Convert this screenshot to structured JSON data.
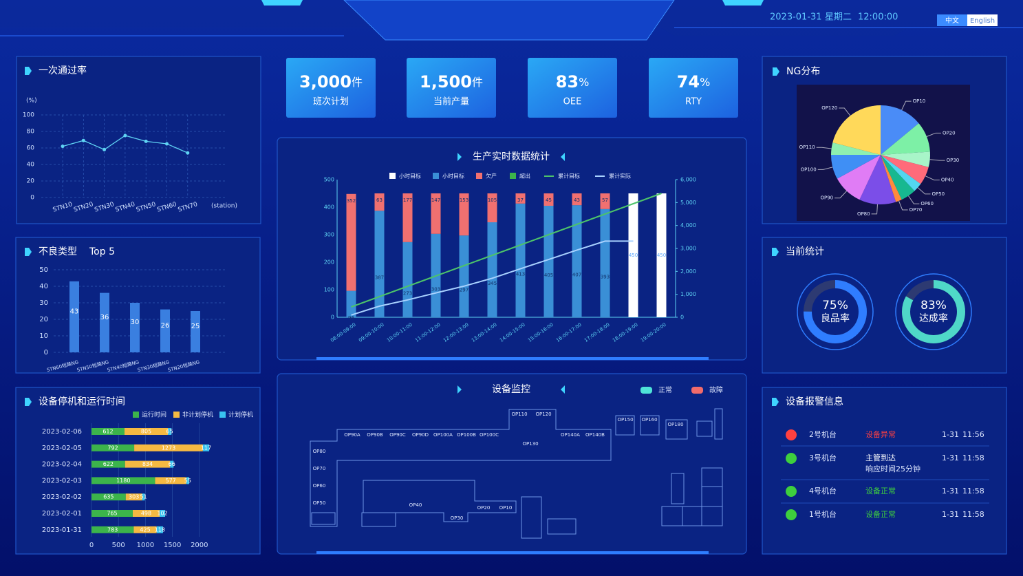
{
  "header": {
    "date": "2023-01-31",
    "weekday": "星期二",
    "time": "12:00:00",
    "languages": [
      "中文",
      "English"
    ]
  },
  "kpis": [
    {
      "value": "3,000",
      "unit": "件",
      "label": "班次计划"
    },
    {
      "value": "1,500",
      "unit": "件",
      "label": "当前产量"
    },
    {
      "value": "83",
      "unit": "%",
      "label": "OEE"
    },
    {
      "value": "74",
      "unit": "%",
      "label": "RTY"
    }
  ],
  "fpy": {
    "type": "line",
    "title": "一次通过率",
    "y_label": "(%)",
    "x_label": "(station)",
    "categories": [
      "STN10",
      "STN20",
      "STN30",
      "STN40",
      "STN50",
      "STN60",
      "STN70"
    ],
    "values": [
      62,
      69,
      58,
      75,
      68,
      65,
      54
    ],
    "color": "#5fd3f3",
    "ylim": [
      0,
      100
    ],
    "yticks": [
      0,
      20,
      40,
      60,
      80,
      100
    ],
    "grid": true
  },
  "defects": {
    "type": "bar",
    "title": "不良类型",
    "subtitle": "Top 5",
    "categories": [
      "STN60短路NG",
      "STN50短路NG",
      "STN40短路NG",
      "STN30短路NG",
      "STN20短路NG"
    ],
    "values": [
      43,
      36,
      30,
      26,
      25
    ],
    "color": "#3a7fe0",
    "ylim": [
      0,
      50
    ],
    "yticks": [
      0,
      10,
      20,
      30,
      40,
      50
    ],
    "grid": true
  },
  "downtime": {
    "type": "hbar_stacked",
    "title": "设备停机和运行时间",
    "categories": [
      "2023-02-06",
      "2023-02-05",
      "2023-02-04",
      "2023-02-03",
      "2023-02-02",
      "2023-02-01",
      "2023-01-31"
    ],
    "series": [
      {
        "name": "运行时间",
        "color": "#3cb44b",
        "values": [
          612,
          792,
          622,
          1180,
          635,
          765,
          783
        ]
      },
      {
        "name": "非计划停机",
        "color": "#f5b942",
        "values": [
          805,
          1273,
          834,
          577,
          303,
          498,
          425
        ]
      },
      {
        "name": "计划停机",
        "color": "#39c3f0",
        "values": [
          65,
          117,
          66,
          55,
          51,
          102,
          118
        ]
      }
    ],
    "xlim": [
      0,
      2500
    ],
    "xticks": [
      0,
      500,
      1000,
      1500,
      2000
    ],
    "grid": true
  },
  "production": {
    "type": "bar",
    "title": "生产实时数据统计",
    "categories": [
      "08:00-09:00",
      "09:00-10:00",
      "10:00-11:00",
      "11:00-12:00",
      "12:00-13:00",
      "13:00-14:00",
      "14:00-15:00",
      "15:00-16:00",
      "16:00-17:00",
      "17:00-18:00",
      "18:00-19:00",
      "19:00-20:00"
    ],
    "series": [
      {
        "name": "小时目标",
        "color": "#ffffff",
        "values": [
          null,
          null,
          null,
          null,
          null,
          null,
          null,
          null,
          null,
          null,
          450,
          450
        ]
      },
      {
        "name": "小时目标",
        "color": "#3a8fd6",
        "values": [
          96,
          387,
          273,
          303,
          297,
          345,
          413,
          405,
          407,
          393,
          null,
          null
        ]
      },
      {
        "name": "欠产",
        "color": "#f07070",
        "values": [
          352,
          63,
          177,
          147,
          153,
          105,
          37,
          45,
          43,
          57,
          null,
          null
        ]
      },
      {
        "name": "超出",
        "color": "#3cb44b",
        "values": [
          null,
          null,
          null,
          null,
          null,
          null,
          null,
          null,
          null,
          null,
          null,
          null
        ]
      },
      {
        "name": "累计目标",
        "color": "#4cc36a",
        "axis": "y2",
        "values": [
          450,
          900,
          1350,
          1800,
          2250,
          2700,
          3150,
          3600,
          4050,
          4500,
          4950,
          5400
        ]
      },
      {
        "name": "累计实际",
        "color": "#a9d2ff",
        "axis": "y2",
        "values": [
          96,
          483,
          756,
          1059,
          1356,
          1701,
          2114,
          2519,
          2926,
          3319,
          3319,
          null
        ]
      }
    ],
    "ylim": [
      0,
      500
    ],
    "yticks": [
      0,
      100,
      200,
      300,
      400,
      500
    ],
    "y2lim": [
      0,
      6000
    ],
    "y2ticks": [
      0,
      {
        "value": 1000,
        "label": "1,000"
      },
      {
        "value": 2000,
        "label": "2,000"
      },
      {
        "value": 3000,
        "label": "3,000"
      },
      {
        "value": 4000,
        "label": "4,000"
      },
      {
        "value": 5000,
        "label": "5,000"
      },
      {
        "value": 6000,
        "label": "6,000"
      }
    ]
  },
  "ng": {
    "type": "pie",
    "title": "NG分布",
    "categories": [
      "OP10",
      "OP20",
      "OP30",
      "OP40",
      "OP50",
      "OP60",
      "OP70",
      "OP80",
      "OP90",
      "OP100",
      "OP110",
      "OP120"
    ],
    "values": [
      14,
      10,
      5,
      6,
      3,
      5,
      2,
      12,
      10,
      8,
      4,
      21
    ],
    "colors": [
      "#4a8cf7",
      "#7df0a6",
      "#a8f5c8",
      "#ff6b7a",
      "#52d6f0",
      "#17b890",
      "#ff8a3d",
      "#7b4ee8",
      "#e07cf5",
      "#3f8ff5",
      "#8ef0b0",
      "#ffd95a"
    ]
  },
  "stats": {
    "type": "gauge",
    "title": "当前统计",
    "categories": [
      "良品率",
      "达成率"
    ],
    "values": [
      75,
      83
    ],
    "value_labels": [
      "75%",
      "83%"
    ],
    "colors": [
      "#2f7dff",
      "#4fd8c8"
    ]
  },
  "monitor": {
    "title": "设备监控",
    "legend": [
      {
        "name": "正常",
        "color": "#4fe3d8"
      },
      {
        "name": "故障",
        "color": "#f26b6b"
      }
    ],
    "stations": [
      "OP110",
      "OP120",
      "OP90A",
      "OP90B",
      "OP90C",
      "OP90D",
      "OP100A",
      "OP100B",
      "OP100C",
      "OP130",
      "OP140A",
      "OP140B",
      "OP150",
      "OP160",
      "OP180",
      "OP80",
      "OP70",
      "OP60",
      "OP50",
      "OP40",
      "OP30",
      "OP20",
      "OP10"
    ]
  },
  "alarms": {
    "title": "设备报警信息",
    "rows": [
      {
        "machine": "2号机台",
        "status": "设备异常",
        "color": "#ff4040",
        "date": "1-31",
        "time": "11:56"
      },
      {
        "machine": "3号机台",
        "status": "主管到达",
        "detail": "响应时间25分钟",
        "color": "#3ecf3e",
        "date": "1-31",
        "time": "11:58"
      },
      {
        "machine": "4号机台",
        "status": "设备正常",
        "color": "#3ecf3e",
        "date": "1-31",
        "time": "11:58"
      },
      {
        "machine": "1号机台",
        "status": "设备正常",
        "color": "#3ecf3e",
        "date": "1-31",
        "time": "11:58"
      }
    ]
  }
}
